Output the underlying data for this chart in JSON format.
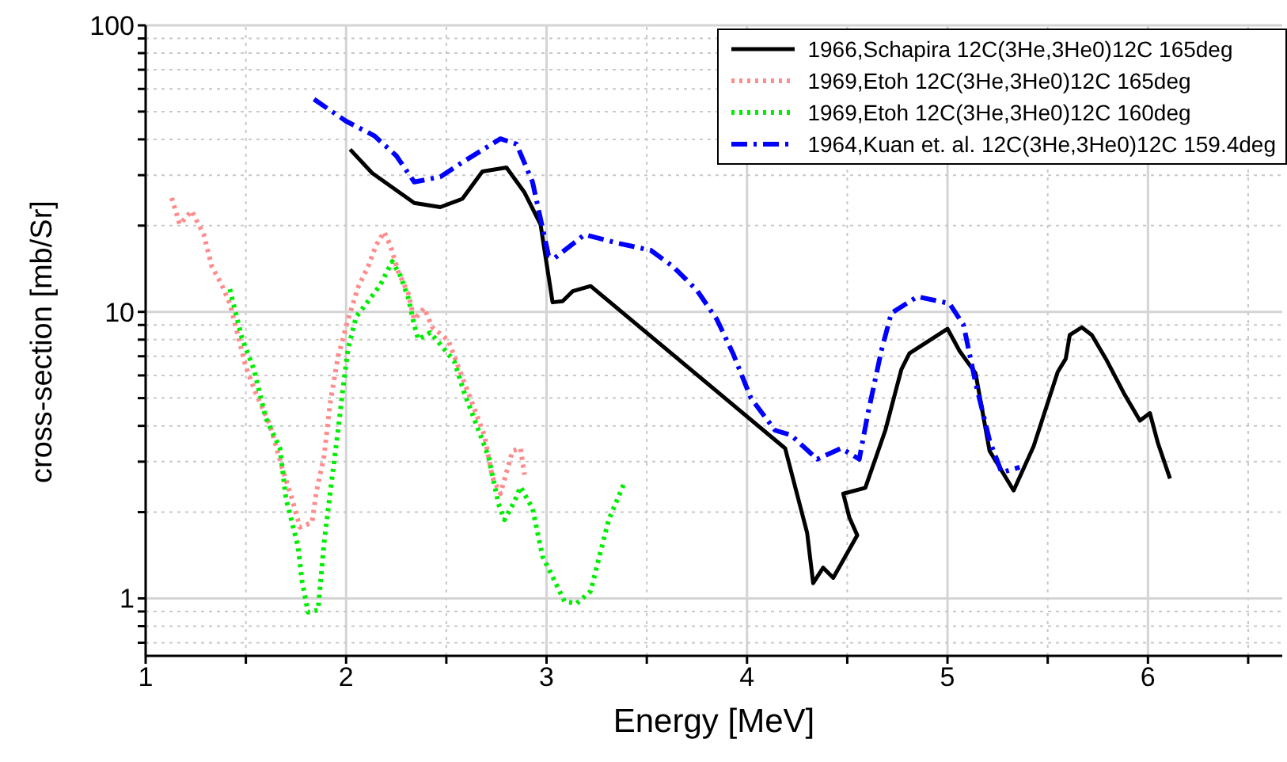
{
  "chart_data": {
    "type": "line",
    "xlabel": "Energy [MeV]",
    "ylabel": "cross-section [mb/Sr]",
    "log": "y",
    "grid": true,
    "legend": "top right",
    "xlim": [
      1,
      6.67
    ],
    "ylim": [
      0.63,
      100
    ],
    "xticks": [
      1,
      {
        "value": 1.5,
        "label": null
      },
      2,
      {
        "value": 2.5,
        "label": null
      },
      3,
      {
        "value": 3.5,
        "label": null
      },
      4,
      {
        "value": 4.5,
        "label": null
      },
      5,
      {
        "value": 5.5,
        "label": null
      },
      6,
      {
        "value": 6.5,
        "label": null
      }
    ],
    "yticks": [
      {
        "value": 0.7,
        "label": null
      },
      {
        "value": 0.8,
        "label": null
      },
      {
        "value": 0.9,
        "label": null
      },
      1,
      {
        "value": 2,
        "label": null
      },
      {
        "value": 3,
        "label": null
      },
      {
        "value": 4,
        "label": null
      },
      {
        "value": 5,
        "label": null
      },
      {
        "value": 6,
        "label": null
      },
      {
        "value": 7,
        "label": null
      },
      {
        "value": 8,
        "label": null
      },
      {
        "value": 9,
        "label": null
      },
      10,
      {
        "value": 20,
        "label": null
      },
      {
        "value": 30,
        "label": null
      },
      {
        "value": 40,
        "label": null
      },
      {
        "value": 50,
        "label": null
      },
      {
        "value": 60,
        "label": null
      },
      {
        "value": 70,
        "label": null
      },
      {
        "value": 80,
        "label": null
      },
      {
        "value": 90,
        "label": null
      },
      100
    ],
    "series": [
      {
        "name": "1966,Schapira 12C(3He,3He0)12C 165deg",
        "color": "#000000",
        "line_style": "solid",
        "x": [
          2.02,
          2.13,
          2.34,
          2.47,
          2.58,
          2.68,
          2.8,
          2.89,
          2.97,
          3.03,
          3.08,
          3.13,
          3.22,
          4.19,
          4.3,
          4.33,
          4.38,
          4.43,
          4.55,
          4.51,
          4.48,
          4.59,
          4.69,
          4.77,
          4.81,
          5.0,
          5.06,
          5.14,
          5.21,
          5.33,
          5.43,
          5.55,
          5.59,
          5.61,
          5.67,
          5.72,
          5.79,
          5.88,
          5.96,
          6.01,
          6.05,
          6.11
        ],
        "values": [
          36.9,
          30.5,
          24.0,
          23.2,
          24.8,
          30.9,
          31.9,
          26.1,
          20.2,
          10.8,
          10.9,
          11.8,
          12.3,
          3.34,
          1.69,
          1.13,
          1.28,
          1.18,
          1.66,
          1.92,
          2.32,
          2.43,
          3.86,
          6.3,
          7.16,
          8.73,
          7.31,
          6.11,
          3.27,
          2.38,
          3.4,
          6.17,
          6.86,
          8.3,
          8.83,
          8.3,
          6.86,
          5.2,
          4.17,
          4.43,
          3.48,
          2.62
        ]
      },
      {
        "name": "1969,Etoh 12C(3He,3He0)12C 165deg",
        "color": "#ff8c8c",
        "line_style": "dotted",
        "x": [
          1.13,
          1.17,
          1.23,
          1.29,
          1.33,
          1.38,
          1.42,
          1.46,
          1.5,
          1.55,
          1.62,
          1.68,
          1.73,
          1.77,
          1.83,
          1.85,
          1.89,
          1.92,
          1.96,
          2.01,
          2.06,
          2.11,
          2.15,
          2.19,
          2.22,
          2.26,
          2.31,
          2.34,
          2.39,
          2.43,
          2.51,
          2.56,
          2.63,
          2.69,
          2.73,
          2.77,
          2.83,
          2.87,
          2.89
        ],
        "values": [
          25.0,
          20.2,
          22.5,
          18.6,
          14.4,
          12.4,
          10.7,
          8.3,
          6.42,
          5.2,
          4.04,
          2.87,
          2.23,
          1.77,
          1.84,
          2.32,
          3.13,
          4.78,
          7.0,
          9.4,
          12.2,
          14.4,
          17.1,
          19.0,
          17.1,
          13.8,
          11.6,
          9.4,
          10.3,
          8.84,
          7.95,
          6.42,
          4.78,
          3.71,
          2.64,
          2.32,
          3.27,
          3.34,
          2.7
        ]
      },
      {
        "name": "1969,Etoh 12C(3He,3He0)12C 160deg",
        "color": "#00ee00",
        "line_style": "dotted",
        "x": [
          1.42,
          1.48,
          1.54,
          1.6,
          1.67,
          1.7,
          1.76,
          1.78,
          1.81,
          1.86,
          1.89,
          1.93,
          1.96,
          1.98,
          2.01,
          2.05,
          2.11,
          2.17,
          2.23,
          2.27,
          2.31,
          2.34,
          2.36,
          2.42,
          2.48,
          2.54,
          2.59,
          2.65,
          2.71,
          2.76,
          2.79,
          2.84,
          2.87,
          2.93,
          2.98,
          3.02,
          3.09,
          3.15,
          3.22,
          3.27,
          3.31,
          3.39
        ],
        "values": [
          12.0,
          8.13,
          6.3,
          4.25,
          3.34,
          2.23,
          1.52,
          1.15,
          0.895,
          0.91,
          1.56,
          2.64,
          3.86,
          5.1,
          7.46,
          9.6,
          10.9,
          12.4,
          15.0,
          13.4,
          11.2,
          9.0,
          8.02,
          8.47,
          7.55,
          6.71,
          5.2,
          4.04,
          3.13,
          2.14,
          1.88,
          2.18,
          2.45,
          2.06,
          1.4,
          1.23,
          0.975,
          0.96,
          1.06,
          1.46,
          1.88,
          2.55
        ]
      },
      {
        "name": "1964,Kuan et. al. 12C(3He,3He0)12C 159.4deg",
        "color": "#0000ff",
        "line_style": "dashed",
        "x": [
          1.84,
          2.0,
          2.14,
          2.25,
          2.34,
          2.47,
          2.59,
          2.77,
          2.85,
          2.93,
          3.01,
          3.04,
          3.19,
          3.35,
          3.52,
          3.63,
          3.75,
          3.85,
          3.93,
          4.02,
          4.14,
          4.22,
          4.35,
          4.47,
          4.56,
          4.6,
          4.67,
          4.72,
          4.85,
          5.01,
          5.08,
          5.14,
          5.21,
          5.27,
          5.36
        ],
        "values": [
          55.2,
          46.3,
          41.2,
          35.1,
          28.4,
          29.6,
          33.6,
          40.2,
          38.5,
          28.4,
          15.7,
          15.4,
          18.6,
          17.4,
          16.4,
          14.4,
          11.9,
          9.4,
          7.16,
          4.99,
          3.86,
          3.71,
          3.06,
          3.34,
          3.06,
          4.31,
          7.31,
          9.9,
          11.3,
          10.7,
          9.0,
          5.66,
          3.56,
          2.75,
          2.87
        ]
      }
    ]
  }
}
